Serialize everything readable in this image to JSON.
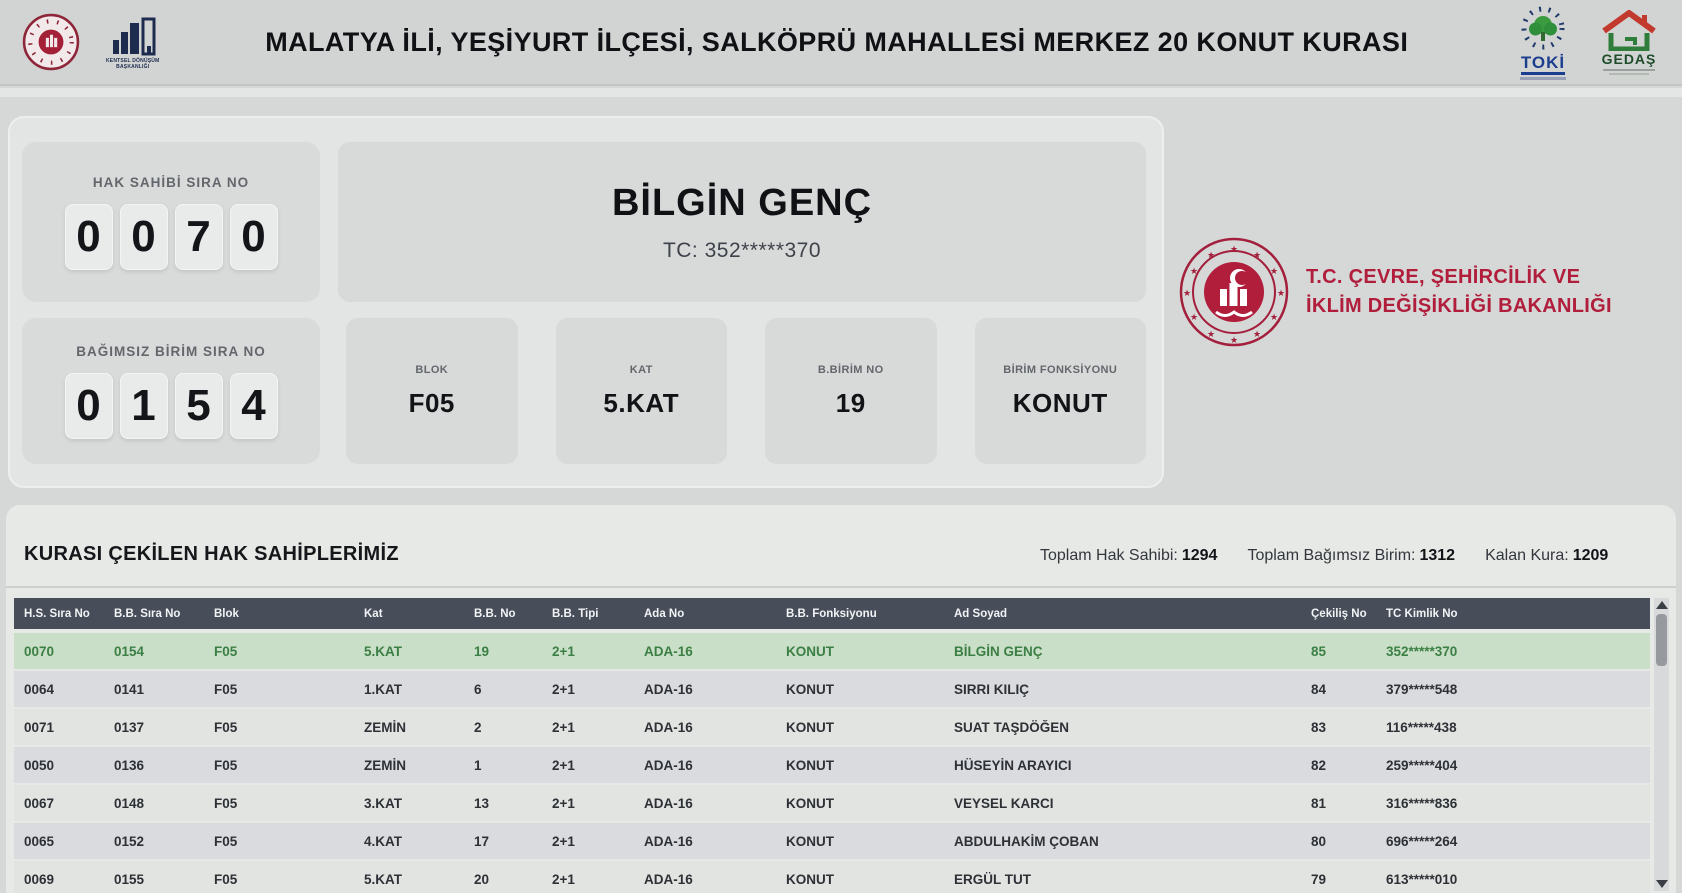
{
  "header": {
    "title": "MALATYA İLİ, YEŞİYURT İLÇESİ, SALKÖPRÜ MAHALLESİ MERKEZ 20 KONUT KURASI",
    "logos": {
      "kentsel_line1": "KENTSEL DÖNÜŞÜM",
      "kentsel_line2": "BAŞKANLIĞI",
      "toki": "TOKİ",
      "gedas": "GEDAŞ"
    }
  },
  "draw": {
    "hak_sahibi": {
      "label": "HAK SAHİBİ SIRA NO",
      "digits": [
        "0",
        "0",
        "7",
        "0"
      ]
    },
    "bagimsiz_birim": {
      "label": "BAĞIMSIZ BİRİM SIRA NO",
      "digits": [
        "0",
        "1",
        "5",
        "4"
      ]
    },
    "winner": {
      "name": "BİLGİN GENÇ",
      "tc": "TC: 352*****370"
    },
    "cards": [
      {
        "label": "BLOK",
        "value": "F05"
      },
      {
        "label": "KAT",
        "value": "5.KAT"
      },
      {
        "label": "B.BİRİM NO",
        "value": "19"
      },
      {
        "label": "BİRİM FONKSİYONU",
        "value": "KONUT"
      }
    ]
  },
  "ministry": {
    "line1": "T.C. ÇEVRE, ŞEHİRCİLİK VE",
    "line2": "İKLİM DEĞİŞİKLİĞİ BAKANLIĞI"
  },
  "table": {
    "title": "KURASI ÇEKİLEN HAK SAHİPLERİMİZ",
    "stats": [
      {
        "label": "Toplam Hak Sahibi:",
        "value": "1294"
      },
      {
        "label": "Toplam Bağımsız Birim:",
        "value": "1312"
      },
      {
        "label": "Kalan Kura:",
        "value": "1209"
      }
    ],
    "columns": [
      "H.S. Sıra No",
      "B.B. Sıra No",
      "Blok",
      "Kat",
      "B.B. No",
      "B.B. Tipi",
      "Ada No",
      "B.B. Fonksiyonu",
      "Ad Soyad",
      "Çekiliş No",
      "TC Kimlik No"
    ],
    "rows": [
      {
        "highlight": true,
        "cells": [
          "0070",
          "0154",
          "F05",
          "5.KAT",
          "19",
          "2+1",
          "ADA-16",
          "KONUT",
          "BİLGİN GENÇ",
          "85",
          "352*****370"
        ]
      },
      {
        "highlight": false,
        "cells": [
          "0064",
          "0141",
          "F05",
          "1.KAT",
          "6",
          "2+1",
          "ADA-16",
          "KONUT",
          "SIRRI KILIÇ",
          "84",
          "379*****548"
        ]
      },
      {
        "highlight": false,
        "cells": [
          "0071",
          "0137",
          "F05",
          "ZEMİN",
          "2",
          "2+1",
          "ADA-16",
          "KONUT",
          "SUAT TAŞDÖĞEN",
          "83",
          "116*****438"
        ]
      },
      {
        "highlight": false,
        "cells": [
          "0050",
          "0136",
          "F05",
          "ZEMİN",
          "1",
          "2+1",
          "ADA-16",
          "KONUT",
          "HÜSEYİN ARAYICI",
          "82",
          "259*****404"
        ]
      },
      {
        "highlight": false,
        "cells": [
          "0067",
          "0148",
          "F05",
          "3.KAT",
          "13",
          "2+1",
          "ADA-16",
          "KONUT",
          "VEYSEL KARCI",
          "81",
          "316*****836"
        ]
      },
      {
        "highlight": false,
        "cells": [
          "0065",
          "0152",
          "F05",
          "4.KAT",
          "17",
          "2+1",
          "ADA-16",
          "KONUT",
          "ABDULHAKİM ÇOBAN",
          "80",
          "696*****264"
        ]
      },
      {
        "highlight": false,
        "cells": [
          "0069",
          "0155",
          "F05",
          "5.KAT",
          "20",
          "2+1",
          "ADA-16",
          "KONUT",
          "ERGÜL TUT",
          "79",
          "613*****010"
        ]
      }
    ]
  },
  "colors": {
    "highlight_row": "#c9dfc7",
    "highlight_text": "#3b7f45",
    "table_header": "#474d59",
    "ministry_red": "#b01e3c",
    "toki_blue": "#1c3e8f",
    "gedas_green": "#1e4d2b"
  }
}
